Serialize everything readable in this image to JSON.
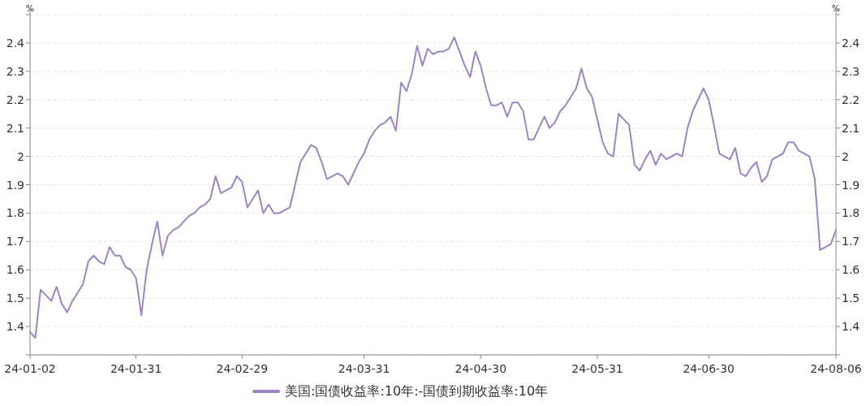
{
  "chart_data": {
    "type": "line",
    "ylabel": "%",
    "y2label": "%",
    "categories": [
      "24-01-02",
      null,
      null,
      null,
      null,
      null,
      null,
      null,
      null,
      null,
      null,
      null,
      null,
      null,
      null,
      null,
      null,
      null,
      null,
      null,
      "24-01-31",
      null,
      null,
      null,
      null,
      null,
      null,
      null,
      null,
      null,
      null,
      null,
      null,
      null,
      null,
      null,
      null,
      null,
      null,
      null,
      "24-02-29",
      null,
      null,
      null,
      null,
      null,
      null,
      null,
      null,
      null,
      null,
      null,
      null,
      null,
      null,
      null,
      null,
      null,
      null,
      null,
      null,
      null,
      null,
      "24-03-31",
      null,
      null,
      null,
      null,
      null,
      null,
      null,
      null,
      null,
      null,
      null,
      null,
      null,
      null,
      null,
      null,
      null,
      null,
      null,
      null,
      null,
      "24-04-30",
      null,
      null,
      null,
      null,
      null,
      null,
      null,
      null,
      null,
      null,
      null,
      null,
      null,
      null,
      null,
      null,
      null,
      null,
      null,
      null,
      null,
      "24-05-31",
      null,
      null,
      null,
      null,
      null,
      null,
      null,
      null,
      null,
      null,
      null,
      null,
      null,
      null,
      null,
      null,
      null,
      null,
      null,
      null,
      "24-06-30",
      null,
      null,
      null,
      null,
      null,
      null,
      null,
      null,
      null,
      null,
      null,
      null,
      null,
      null,
      null,
      null,
      null,
      null,
      null,
      null,
      null,
      null,
      null,
      "24-08-06"
    ],
    "ylim": [
      1.3,
      2.5
    ],
    "yticks": [
      {
        "value": 1.3,
        "label": null
      },
      1.4,
      1.5,
      1.6,
      1.7,
      1.8,
      1.9,
      2,
      2.1,
      2.2,
      2.3,
      2.4,
      {
        "value": 2.5,
        "label": null
      }
    ],
    "y2lim": [
      1.3,
      2.5
    ],
    "y2ticks": [
      {
        "value": 1.3,
        "label": null
      },
      1.4,
      1.5,
      1.6,
      1.7,
      1.8,
      1.9,
      2,
      2.1,
      2.2,
      2.3,
      2.4,
      {
        "value": 2.5,
        "label": null
      }
    ],
    "grid": "y",
    "legend": "bottom",
    "series": [
      {
        "name": "美国:国债收益率:10年:-国债到期收益率:10年",
        "color": "#9b84c0",
        "values": [
          1.38,
          1.36,
          1.53,
          1.51,
          1.49,
          1.54,
          1.48,
          1.45,
          1.49,
          1.52,
          1.55,
          1.63,
          1.65,
          1.63,
          1.62,
          1.68,
          1.65,
          1.65,
          1.61,
          1.6,
          1.57,
          1.44,
          1.6,
          1.69,
          1.77,
          1.65,
          1.72,
          1.74,
          1.75,
          1.77,
          1.79,
          1.8,
          1.82,
          1.83,
          1.85,
          1.93,
          1.87,
          1.88,
          1.89,
          1.93,
          1.91,
          1.82,
          1.85,
          1.88,
          1.8,
          1.83,
          1.8,
          1.8,
          1.81,
          1.82,
          1.9,
          1.98,
          2.01,
          2.04,
          2.03,
          1.98,
          1.92,
          1.93,
          1.94,
          1.93,
          1.9,
          1.94,
          1.98,
          2.01,
          2.06,
          2.09,
          2.11,
          2.12,
          2.14,
          2.09,
          2.26,
          2.23,
          2.29,
          2.39,
          2.32,
          2.38,
          2.36,
          2.37,
          2.37,
          2.38,
          2.42,
          2.37,
          2.32,
          2.28,
          2.37,
          2.32,
          2.24,
          2.18,
          2.18,
          2.19,
          2.14,
          2.19,
          2.19,
          2.16,
          2.06,
          2.06,
          2.1,
          2.14,
          2.1,
          2.12,
          2.16,
          2.18,
          2.21,
          2.24,
          2.31,
          2.24,
          2.21,
          2.13,
          2.05,
          2.01,
          2.0,
          2.15,
          2.13,
          2.11,
          1.97,
          1.95,
          1.99,
          2.02,
          1.97,
          2.01,
          1.99,
          2.0,
          2.01,
          2.0,
          2.1,
          2.16,
          2.2,
          2.24,
          2.2,
          2.11,
          2.01,
          2.0,
          1.99,
          2.03,
          1.94,
          1.93,
          1.96,
          1.98,
          1.91,
          1.93,
          1.99,
          2.0,
          2.01,
          2.05,
          2.05,
          2.02,
          2.01,
          2.0,
          1.92,
          1.67,
          1.68,
          1.69,
          1.74
        ]
      }
    ]
  }
}
